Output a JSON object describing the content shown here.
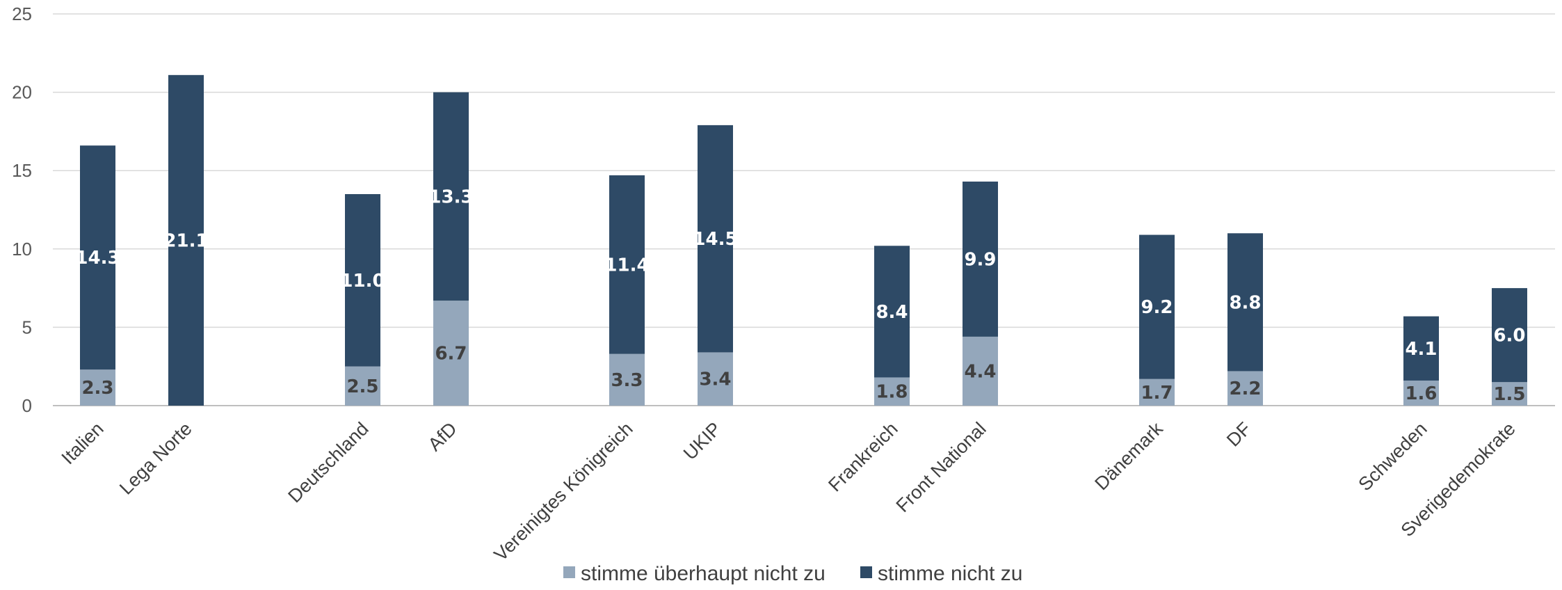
{
  "chart_data": {
    "type": "bar",
    "stacked": true,
    "categories": [
      "Italien",
      "Lega Norte",
      "Deutschland",
      "AfD",
      "Vereinigtes Königreich",
      "UKIP",
      "Frankreich",
      "Front National",
      "Dänemark",
      "DF",
      "Schweden",
      "Sverigedemokrate"
    ],
    "series": [
      {
        "name": "stimme überhaupt nicht zu",
        "values": [
          2.3,
          null,
          2.5,
          6.7,
          3.3,
          3.4,
          1.8,
          4.4,
          1.7,
          2.2,
          1.6,
          1.5
        ]
      },
      {
        "name": "stimme nicht zu",
        "values": [
          14.3,
          21.1,
          11.0,
          13.3,
          11.4,
          14.5,
          8.4,
          9.9,
          9.2,
          8.8,
          4.1,
          6.0
        ]
      }
    ],
    "data_labels": [
      [
        "2.3",
        "",
        "2.5",
        "6.7",
        "3.3",
        "3.4",
        "1.8",
        "4.4",
        "1.7",
        "2.2",
        "1.6",
        "1.5"
      ],
      [
        "14.3",
        "21.1",
        "11.0",
        "13.3",
        "11.4",
        "14.5",
        "8.4",
        "9.9",
        "9.2",
        "8.8",
        "4.1",
        "6.0"
      ]
    ],
    "ylim": [
      0,
      25
    ],
    "yticks": [
      "0",
      "5",
      "10",
      "15",
      "20",
      "25"
    ],
    "title": "",
    "xlabel": "",
    "ylabel": "",
    "grid": true,
    "legend_position": "bottom",
    "colors": [
      "#94a7bb",
      "#2e4a66"
    ],
    "label_colors": [
      "#404040",
      "#ffffff"
    ]
  }
}
